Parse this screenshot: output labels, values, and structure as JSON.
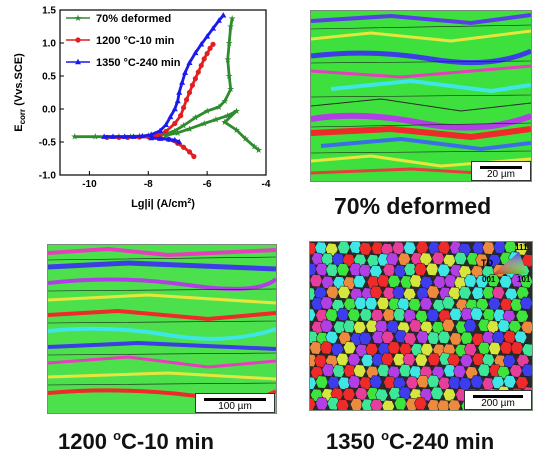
{
  "chart_data": {
    "type": "line",
    "xlabel": "Lg|i| (A/cm",
    "xlabel_sup": "2",
    "xlabel_end": ")",
    "ylabel_main": "E",
    "ylabel_sub": "corr",
    "ylabel_rest": " (Vvs.SCE)",
    "xlim": [
      -11,
      -4
    ],
    "ylim": [
      -1.0,
      1.5
    ],
    "x_ticks": [
      -10,
      -8,
      -6,
      -4
    ],
    "x_tick_labels": [
      "-10",
      "-8",
      "-6",
      "-4"
    ],
    "y_ticks": [
      -1.0,
      -0.5,
      0.0,
      0.5,
      1.0,
      1.5
    ],
    "y_tick_labels": [
      "-1.0",
      "-0.5",
      "0.0",
      "0.5",
      "1.0",
      "1.5"
    ],
    "legend_position": "top-left",
    "series": [
      {
        "name": "70% deformed",
        "color": "#2e8b2e",
        "marker": "star",
        "points": [
          [
            -10.5,
            -0.42
          ],
          [
            -9.8,
            -0.42
          ],
          [
            -9.0,
            -0.42
          ],
          [
            -8.6,
            -0.415
          ],
          [
            -8.3,
            -0.41
          ],
          [
            -8.0,
            -0.405
          ],
          [
            -7.7,
            -0.4
          ],
          [
            -7.4,
            -0.38
          ],
          [
            -7.1,
            -0.33
          ],
          [
            -6.8,
            -0.25
          ],
          [
            -6.4,
            -0.13
          ],
          [
            -6.0,
            -0.03
          ],
          [
            -5.6,
            0.03
          ],
          [
            -5.4,
            0.12
          ],
          [
            -5.2,
            0.3
          ],
          [
            -5.25,
            0.5
          ],
          [
            -5.3,
            0.75
          ],
          [
            -5.25,
            1.0
          ],
          [
            -5.2,
            1.25
          ],
          [
            -5.15,
            1.37
          ]
        ],
        "points_cathodic": [
          [
            -7.4,
            -0.4
          ],
          [
            -7.0,
            -0.36
          ],
          [
            -6.6,
            -0.3
          ],
          [
            -6.1,
            -0.22
          ],
          [
            -5.7,
            -0.16
          ],
          [
            -5.3,
            -0.1
          ],
          [
            -5.0,
            -0.03
          ],
          [
            -5.4,
            -0.2
          ],
          [
            -5.0,
            -0.32
          ],
          [
            -4.7,
            -0.45
          ],
          [
            -4.4,
            -0.57
          ],
          [
            -4.25,
            -0.62
          ]
        ]
      },
      {
        "name": "1200 °C-10 min",
        "color": "#e02020",
        "marker": "circle",
        "points": [
          [
            -9.4,
            -0.43
          ],
          [
            -9.0,
            -0.43
          ],
          [
            -8.7,
            -0.43
          ],
          [
            -8.3,
            -0.425
          ],
          [
            -8.0,
            -0.42
          ],
          [
            -7.7,
            -0.4
          ],
          [
            -7.4,
            -0.34
          ],
          [
            -7.1,
            -0.22
          ],
          [
            -6.9,
            -0.1
          ],
          [
            -6.8,
            0.02
          ],
          [
            -6.7,
            0.14
          ],
          [
            -6.6,
            0.25
          ],
          [
            -6.5,
            0.36
          ],
          [
            -6.4,
            0.46
          ],
          [
            -6.3,
            0.56
          ],
          [
            -6.2,
            0.66
          ],
          [
            -6.1,
            0.76
          ],
          [
            -6.0,
            0.84
          ],
          [
            -5.9,
            0.92
          ],
          [
            -5.8,
            0.98
          ]
        ],
        "points_cathodic": [
          [
            -7.6,
            -0.43
          ],
          [
            -7.3,
            -0.46
          ],
          [
            -7.0,
            -0.52
          ],
          [
            -6.8,
            -0.58
          ],
          [
            -6.6,
            -0.65
          ],
          [
            -6.45,
            -0.72
          ]
        ]
      },
      {
        "name": "1350 °C-240 min",
        "color": "#1a1aee",
        "marker": "triangle",
        "points": [
          [
            -9.5,
            -0.42
          ],
          [
            -9.2,
            -0.42
          ],
          [
            -8.8,
            -0.42
          ],
          [
            -8.5,
            -0.42
          ],
          [
            -8.2,
            -0.41
          ],
          [
            -7.9,
            -0.39
          ],
          [
            -7.6,
            -0.33
          ],
          [
            -7.4,
            -0.24
          ],
          [
            -7.25,
            -0.12
          ],
          [
            -7.1,
            0.0
          ],
          [
            -7.0,
            0.12
          ],
          [
            -6.95,
            0.25
          ],
          [
            -6.85,
            0.4
          ],
          [
            -6.75,
            0.55
          ],
          [
            -6.6,
            0.7
          ],
          [
            -6.4,
            0.85
          ],
          [
            -6.2,
            0.98
          ],
          [
            -6.0,
            1.1
          ],
          [
            -5.8,
            1.22
          ],
          [
            -5.6,
            1.34
          ],
          [
            -5.45,
            1.42
          ]
        ],
        "points_cathodic": [
          [
            -7.9,
            -0.44
          ],
          [
            -7.6,
            -0.45
          ],
          [
            -7.3,
            -0.46
          ],
          [
            -7.1,
            -0.47
          ],
          [
            -6.95,
            -0.5
          ]
        ]
      }
    ]
  },
  "panels": {
    "deformed_map": {
      "scale_label": "20 µm",
      "caption": "70% deformed"
    },
    "map_1200": {
      "scale_label": "100 µm",
      "caption_pre": "1200 ",
      "caption_sup": "o",
      "caption_post": "C-10 min"
    },
    "map_1350": {
      "scale_label": "200 µm",
      "caption_pre": "1350 ",
      "caption_sup": "o",
      "caption_post": "C-240 min",
      "ipf_key": {
        "dir": "TD",
        "v111": "111",
        "v001": "001",
        "v101": "101"
      }
    }
  },
  "colors": {
    "green": "#3de43d",
    "red": "#ee2a2a",
    "blue": "#3d3dee",
    "purple": "#b23ee6",
    "cyan": "#3ee6e6",
    "yellow": "#d6e63e"
  }
}
